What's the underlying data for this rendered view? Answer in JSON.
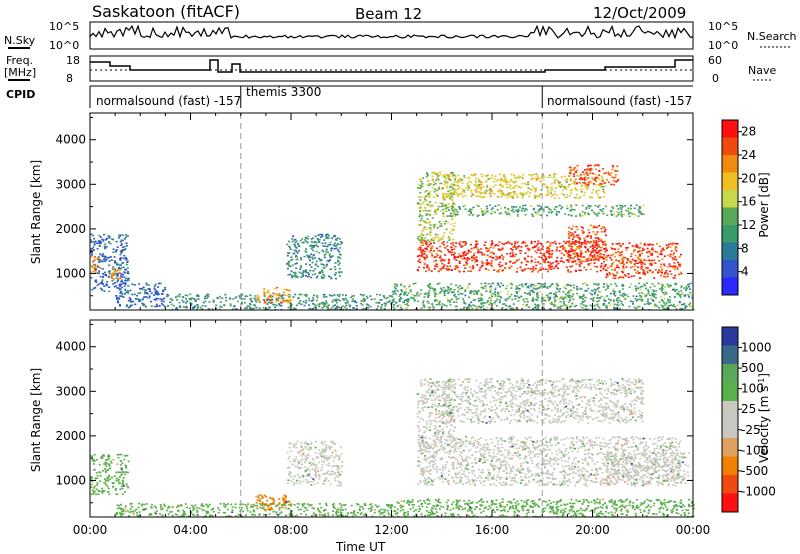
{
  "header": {
    "title": "Saskatoon (fitACF)",
    "beam": "Beam 12",
    "date": "12/Oct/2009"
  },
  "status_panels": {
    "nsky_label": "N.Sky",
    "nsearch_label": "N.Search",
    "freq_label_1": "Freq.",
    "freq_label_2": "[MHz]",
    "nave_label": "Nave",
    "cpid_label": "CPID",
    "left_ticks_top": [
      "10^5",
      "10^0"
    ],
    "right_ticks_top": [
      "10^5",
      "10^0"
    ],
    "left_ticks_freq": [
      "18",
      "8"
    ],
    "right_ticks_freq": [
      "60",
      "0"
    ],
    "cpid_segments": [
      {
        "label": "normalsound (fast) -157",
        "start_h": 0.0
      },
      {
        "label": "themis 3300",
        "start_h": 6.0
      },
      {
        "label": "normalsound (fast) -157",
        "start_h": 18.0
      }
    ]
  },
  "chart_data": [
    {
      "type": "heatmap",
      "title": "Power",
      "xlabel": "",
      "ylabel": "Slant Range [km]",
      "xlim": [
        0,
        24
      ],
      "ylim": [
        180,
        4600
      ],
      "y_ticks": [
        1000,
        2000,
        3000,
        4000
      ],
      "colorbar": {
        "label": "Power [dB]",
        "ticks": [
          4,
          8,
          12,
          16,
          20,
          24,
          28
        ],
        "range": [
          0,
          30
        ]
      },
      "echo_regions": [
        {
          "t0": 0.0,
          "t1": 1.5,
          "r0": 600,
          "r1": 1900,
          "value": 6
        },
        {
          "t0": 0.0,
          "t1": 0.3,
          "r0": 1000,
          "r1": 1400,
          "value": 24
        },
        {
          "t0": 0.8,
          "t1": 1.2,
          "r0": 850,
          "r1": 1150,
          "value": 22
        },
        {
          "t0": 1.0,
          "t1": 3.0,
          "r0": 250,
          "r1": 800,
          "value": 6
        },
        {
          "t0": 3.0,
          "t1": 12.0,
          "r0": 200,
          "r1": 550,
          "value": 10
        },
        {
          "t0": 6.5,
          "t1": 8.0,
          "r0": 350,
          "r1": 700,
          "value": 22
        },
        {
          "t0": 7.8,
          "t1": 10.0,
          "r0": 900,
          "r1": 1900,
          "value": 9
        },
        {
          "t0": 13.0,
          "t1": 20.5,
          "r0": 1050,
          "r1": 1750,
          "value": 27
        },
        {
          "t0": 13.0,
          "t1": 14.5,
          "r0": 1700,
          "r1": 3300,
          "value": 16
        },
        {
          "t0": 14.0,
          "t1": 20.5,
          "r0": 2700,
          "r1": 3250,
          "value": 18
        },
        {
          "t0": 14.0,
          "t1": 22.0,
          "r0": 2300,
          "r1": 2550,
          "value": 12
        },
        {
          "t0": 19.0,
          "t1": 21.0,
          "r0": 3000,
          "r1": 3450,
          "value": 26
        },
        {
          "t0": 19.0,
          "t1": 20.5,
          "r0": 1300,
          "r1": 2100,
          "value": 26
        },
        {
          "t0": 20.5,
          "t1": 23.5,
          "r0": 900,
          "r1": 1700,
          "value": 26
        },
        {
          "t0": 12.0,
          "t1": 24.0,
          "r0": 200,
          "r1": 800,
          "value": 12
        }
      ]
    },
    {
      "type": "heatmap",
      "title": "Velocity",
      "xlabel": "Time UT",
      "ylabel": "Slant Range [km]",
      "xlim": [
        0,
        24
      ],
      "ylim": [
        180,
        4600
      ],
      "y_ticks": [
        1000,
        2000,
        3000,
        4000
      ],
      "x_ticks": [
        "00:00",
        "04:00",
        "08:00",
        "12:00",
        "16:00",
        "20:00",
        "00:00"
      ],
      "colorbar": {
        "label": "Velocity [m s^-1]",
        "ticks": [
          "1000",
          "500",
          "100",
          "25",
          "-25",
          "-100",
          "-500",
          "-1000"
        ]
      },
      "echo_regions": [
        {
          "t0": 0.0,
          "t1": 1.5,
          "r0": 700,
          "r1": 1600,
          "value": "100"
        },
        {
          "t0": 1.0,
          "t1": 12.0,
          "r0": 200,
          "r1": 500,
          "value": "100"
        },
        {
          "t0": 6.5,
          "t1": 8.0,
          "r0": 350,
          "r1": 700,
          "value": "-500"
        },
        {
          "t0": 7.8,
          "t1": 10.0,
          "r0": 900,
          "r1": 1900,
          "value": "25"
        },
        {
          "t0": 13.0,
          "t1": 23.5,
          "r0": 900,
          "r1": 2000,
          "value": "25"
        },
        {
          "t0": 13.0,
          "t1": 14.5,
          "r0": 1700,
          "r1": 3300,
          "value": "25"
        },
        {
          "t0": 14.0,
          "t1": 22.0,
          "r0": 2300,
          "r1": 3300,
          "value": "25"
        },
        {
          "t0": 20.5,
          "t1": 23.8,
          "r0": 950,
          "r1": 1650,
          "value": "25"
        },
        {
          "t0": 12.0,
          "t1": 24.0,
          "r0": 200,
          "r1": 600,
          "value": "100"
        }
      ]
    }
  ]
}
